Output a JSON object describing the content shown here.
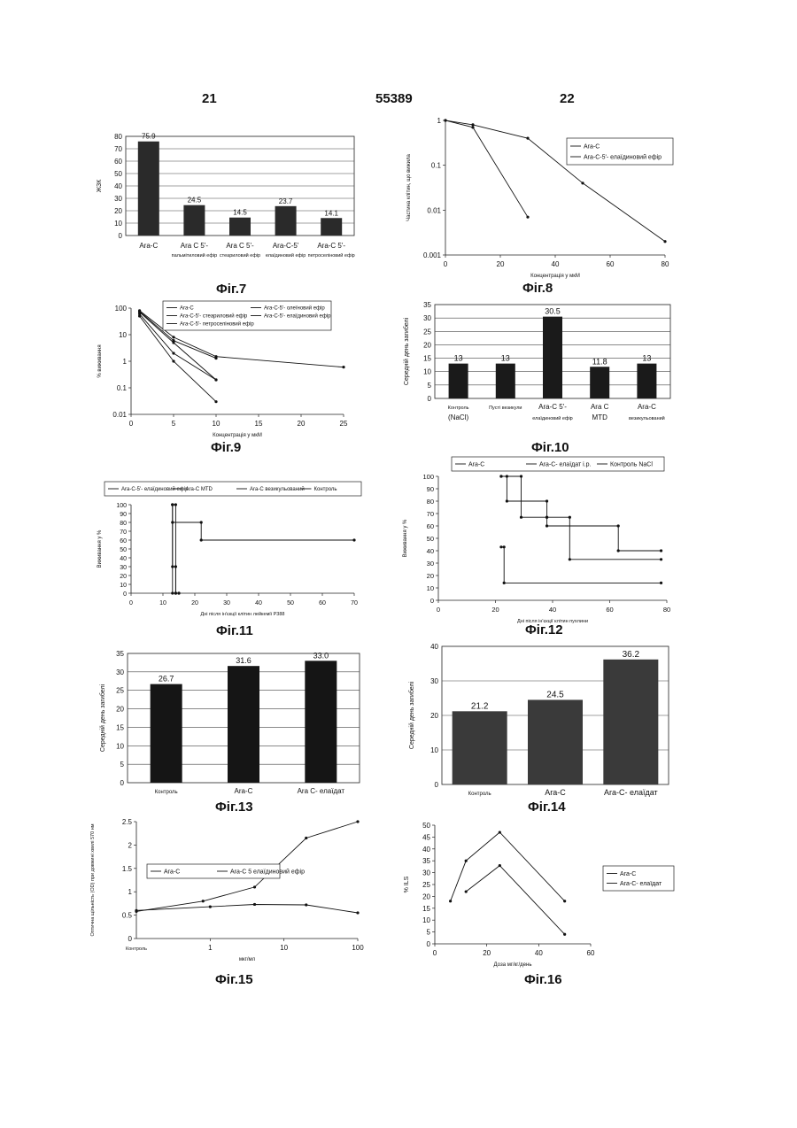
{
  "header": {
    "left": "21",
    "center": "55389",
    "right": "22"
  },
  "figures": [
    "Фіг.7",
    "Фіг.8",
    "Фіг.9",
    "Фіг.10",
    "Фіг.11",
    "Фіг.12",
    "Фіг.13",
    "Фіг.14",
    "Фіг.15",
    "Фіг.16"
  ],
  "chart_data": [
    {
      "id": "fig7",
      "type": "bar",
      "categories": [
        "Ara-C",
        "Ara C 5'-",
        "Ara C 5'-",
        "Ara-C-5'",
        "Ara-C 5'-"
      ],
      "category_sublabels": [
        "",
        "пальмітиловий ефір",
        "стеариловий ефір",
        "елаїдиновий ефір",
        "петроселіновий ефір"
      ],
      "values": [
        75.9,
        24.5,
        14.5,
        23.7,
        14.1
      ],
      "value_labels": [
        "75.9",
        "24.5",
        "14.5",
        "23.7",
        "14.1"
      ],
      "ylabel": "ЖЗК",
      "ylim": [
        0,
        80
      ],
      "yticks": [
        0,
        10,
        20,
        30,
        40,
        50,
        60,
        70,
        80
      ]
    },
    {
      "id": "fig8",
      "type": "line",
      "yscale": "log",
      "series": [
        {
          "name": "Ara-C",
          "x": [
            0,
            10,
            30
          ],
          "y": [
            1,
            0.7,
            0.007
          ]
        },
        {
          "name": "Ara-C-5'- елаїдиновий ефір",
          "x": [
            0,
            10,
            30,
            50,
            80
          ],
          "y": [
            1,
            0.8,
            0.4,
            0.04,
            0.002
          ]
        }
      ],
      "xlabel": "Концентрація у мкМ",
      "ylabel": "Частина клітин, що вижила",
      "xlim": [
        0,
        80
      ],
      "ylim": [
        0.001,
        1
      ],
      "xticks": [
        0,
        20,
        40,
        60,
        80
      ],
      "yticks": [
        "1",
        "0.1",
        "0.01",
        "0.001"
      ],
      "legend": "top-right"
    },
    {
      "id": "fig9",
      "type": "line",
      "yscale": "log",
      "series": [
        {
          "name": "Ara-C",
          "x": [
            1,
            5,
            10,
            25
          ],
          "y": [
            80,
            8,
            1.5,
            0.6
          ]
        },
        {
          "name": "Ara-C-5'- стеариловий ефір",
          "x": [
            1,
            5,
            10
          ],
          "y": [
            70,
            5,
            0.2
          ]
        },
        {
          "name": "Ara-C-5'- петроселіновий ефір",
          "x": [
            1,
            5,
            10
          ],
          "y": [
            60,
            2,
            0.2
          ]
        },
        {
          "name": "Ara-C-5'- олеїновий ефір",
          "x": [
            1,
            5,
            10
          ],
          "y": [
            75,
            6,
            1.3
          ]
        },
        {
          "name": "Ara-C-5'- елаїдиновий ефір",
          "x": [
            1,
            5,
            10
          ],
          "y": [
            50,
            1,
            0.03
          ]
        }
      ],
      "xlabel": "Концентрація у мкМ",
      "ylabel": "% виживання",
      "xlim": [
        0,
        25
      ],
      "ylim": [
        0.01,
        100
      ],
      "xticks": [
        0,
        5,
        10,
        15,
        20,
        25
      ],
      "yticks": [
        "100",
        "10",
        "1",
        "0.1",
        "0.01"
      ],
      "legend": "top"
    },
    {
      "id": "fig10",
      "type": "bar",
      "categories": [
        "Контроль (NaCl)",
        "Пусті везикули",
        "Ara-C 5'- елаїдиновий ефір",
        "Ara C MTD",
        "Ara-C везикульований"
      ],
      "category_top": [
        "Контроль",
        "Пусті везикули",
        "Ara-C 5'-",
        "Ara C",
        "Ara-C"
      ],
      "category_bottom": [
        "(NaCl)",
        "",
        "елаїдиновий ефір",
        "MTD",
        "везикульований"
      ],
      "values": [
        13,
        13,
        30.5,
        11.8,
        13
      ],
      "value_labels": [
        "13",
        "13",
        "30.5",
        "11.8",
        "13"
      ],
      "ylabel": "Середній день загибелі",
      "ylim": [
        0,
        35
      ],
      "yticks": [
        0,
        5,
        10,
        15,
        20,
        25,
        30,
        35
      ]
    },
    {
      "id": "fig11",
      "type": "line",
      "step": true,
      "series": [
        {
          "name": "Ara-C-5'- елаїдиновий ефір",
          "x": [
            13,
            22,
            22,
            70
          ],
          "y": [
            80,
            80,
            60,
            60
          ]
        },
        {
          "name": "Ara-C MTD",
          "x": [
            13,
            13,
            14,
            14,
            15
          ],
          "y": [
            100,
            30,
            30,
            0,
            0
          ]
        },
        {
          "name": "Ara-C везикульований",
          "x": [
            13,
            14,
            14,
            15
          ],
          "y": [
            100,
            100,
            0,
            0
          ]
        },
        {
          "name": "Контроль",
          "x": [
            13,
            13,
            14
          ],
          "y": [
            100,
            0,
            0
          ]
        }
      ],
      "xlabel": "Дні після ін'єкції клітин лейкемії P388",
      "ylabel": "Виживання у %",
      "xlim": [
        0,
        70
      ],
      "ylim": [
        0,
        100
      ],
      "xticks": [
        0,
        10,
        20,
        30,
        40,
        50,
        60,
        70
      ],
      "yticks": [
        0,
        10,
        20,
        30,
        40,
        50,
        60,
        70,
        80,
        90,
        100
      ],
      "legend": "top"
    },
    {
      "id": "fig12",
      "type": "line",
      "step": true,
      "series": [
        {
          "name": "Ara-C",
          "x": [
            22,
            24,
            24,
            38,
            38,
            63,
            63,
            78
          ],
          "y": [
            100,
            100,
            80,
            80,
            60,
            60,
            40,
            40
          ]
        },
        {
          "name": "Ara-C- елаїдат i.p.",
          "x": [
            22,
            29,
            29,
            38,
            38,
            46,
            46,
            78
          ],
          "y": [
            100,
            100,
            67,
            67,
            67,
            67,
            33,
            33
          ]
        },
        {
          "name": "Контроль NaCl",
          "x": [
            22,
            23,
            23,
            78
          ],
          "y": [
            43,
            43,
            14,
            14
          ]
        }
      ],
      "xlabel": "Дні після ін'єкції клітин пухлини",
      "ylabel": "Виживання у %",
      "xlim": [
        0,
        80
      ],
      "ylim": [
        0,
        100
      ],
      "xticks": [
        0,
        20,
        40,
        60,
        80
      ],
      "yticks": [
        0,
        10,
        20,
        30,
        40,
        50,
        60,
        70,
        80,
        90,
        100
      ],
      "legend": "top"
    },
    {
      "id": "fig13",
      "type": "bar",
      "categories": [
        "Контроль",
        "Ara-C",
        "Ara C- елаїдат"
      ],
      "values": [
        26.7,
        31.6,
        33.0
      ],
      "value_labels": [
        "26.7",
        "31.6",
        "33.0"
      ],
      "ylabel": "Середній день загибелі",
      "ylim": [
        0,
        35
      ],
      "yticks": [
        0,
        5,
        10,
        15,
        20,
        25,
        30,
        35
      ]
    },
    {
      "id": "fig14",
      "type": "bar",
      "categories": [
        "Контроль",
        "Ara-C",
        "Ara-C- елаїдат"
      ],
      "values": [
        21.2,
        24.5,
        36.2
      ],
      "value_labels": [
        "21.2",
        "24.5",
        "36.2"
      ],
      "ylabel": "Середній день загибелі",
      "ylim": [
        0,
        40
      ],
      "yticks": [
        0,
        10,
        20,
        30,
        40
      ]
    },
    {
      "id": "fig15",
      "type": "line",
      "xscale": "log",
      "series": [
        {
          "name": "Ara-C",
          "x": [
            0.1,
            1,
            4,
            20,
            100
          ],
          "y": [
            0.6,
            0.68,
            0.73,
            0.72,
            0.55
          ]
        },
        {
          "name": "Ara-C 5 елаїдиновий ефір",
          "x": [
            0.1,
            0.8,
            4,
            20,
            100
          ],
          "y": [
            0.58,
            0.8,
            1.1,
            2.15,
            2.5
          ]
        }
      ],
      "xlabel": "мкг/мл",
      "ylabel": "Оптична щільність (OD) при довжині хвилі 570 нм",
      "x_first_tick": "Контроль",
      "xticks": [
        "1",
        "10",
        "100"
      ],
      "ylim": [
        0,
        2.5
      ],
      "yticks": [
        0,
        0.5,
        1,
        1.5,
        2,
        2.5
      ],
      "legend": "middle-left"
    },
    {
      "id": "fig16",
      "type": "line",
      "series": [
        {
          "name": "Ara-C",
          "x": [
            12,
            25,
            50
          ],
          "y": [
            22,
            33,
            4
          ]
        },
        {
          "name": "Ara-C- елаїдат",
          "x": [
            6,
            12,
            25,
            50
          ],
          "y": [
            18,
            35,
            47,
            18
          ]
        }
      ],
      "xlabel": "Доза мг/кг/день",
      "ylabel": "% ILS",
      "xlim": [
        0,
        60
      ],
      "ylim": [
        0,
        50
      ],
      "xticks": [
        0,
        20,
        40,
        60
      ],
      "yticks": [
        0,
        5,
        10,
        15,
        20,
        25,
        30,
        35,
        40,
        45,
        50
      ],
      "legend": "right"
    }
  ]
}
